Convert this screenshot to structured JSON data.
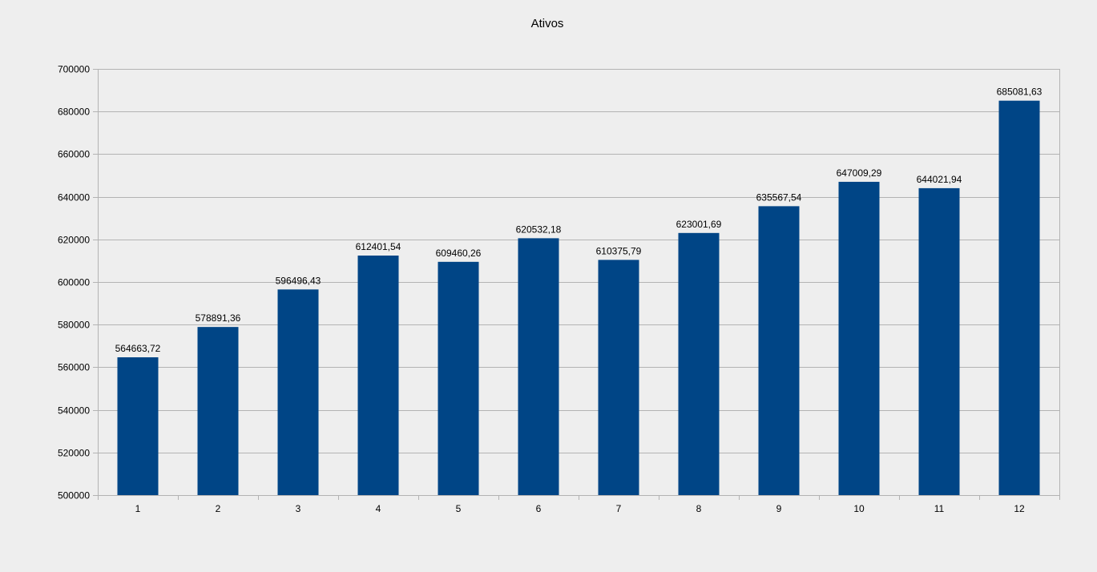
{
  "chart_data": {
    "type": "bar",
    "title": "Ativos",
    "xlabel": "",
    "ylabel": "",
    "categories": [
      "1",
      "2",
      "3",
      "4",
      "5",
      "6",
      "7",
      "8",
      "9",
      "10",
      "11",
      "12"
    ],
    "values": [
      564663.72,
      578891.36,
      596496.43,
      612401.54,
      609460.26,
      620532.18,
      610375.79,
      623001.69,
      635567.54,
      647009.29,
      644021.94,
      685081.63
    ],
    "data_labels": [
      "564663,72",
      "578891,36",
      "596496,43",
      "612401,54",
      "609460,26",
      "620532,18",
      "610375,79",
      "623001,69",
      "635567,54",
      "647009,29",
      "644021,94",
      "685081,63"
    ],
    "ylim": [
      500000,
      700000
    ],
    "yticks": [
      500000,
      520000,
      540000,
      560000,
      580000,
      600000,
      620000,
      640000,
      660000,
      680000,
      700000
    ],
    "grid": true,
    "legend": "none",
    "colors": {
      "bar": "#004586",
      "grid": "#b3b3b3",
      "background": "#eeeeee",
      "text": "#000000"
    }
  }
}
